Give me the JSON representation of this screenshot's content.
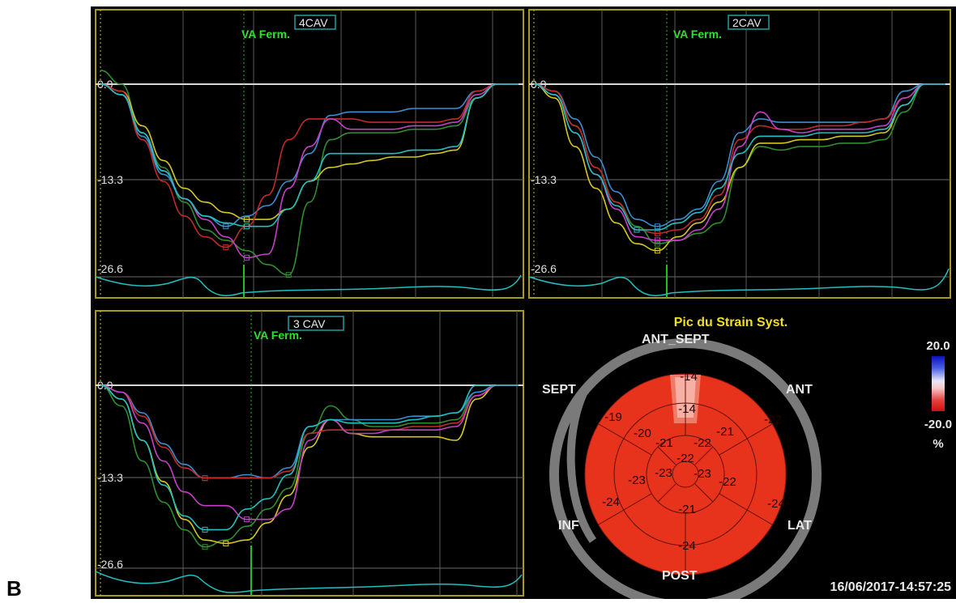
{
  "figure_label": "B",
  "timestamp": "16/06/2017-14:57:25",
  "bullseye": {
    "title": "Pic du Strain Syst.",
    "wall_labels": {
      "ant_sept": "ANT_SEPT",
      "sept": "SEPT",
      "ant": "ANT",
      "inf": "INF",
      "lat": "LAT",
      "post": "POST"
    },
    "segments": {
      "basal": [
        "-14",
        "-22",
        "-24",
        "-24",
        "-24",
        "-19"
      ],
      "mid": [
        "-14",
        "-21",
        "-22",
        "-21",
        "-23",
        "-20"
      ],
      "apical": [
        "-21",
        "-22",
        "-23",
        "-23"
      ],
      "apex": "-22"
    },
    "legend": {
      "max": "20.0",
      "min": "-20.0",
      "unit": "%"
    }
  },
  "chart_data": [
    {
      "type": "line",
      "title": "4CAV",
      "event_marker": "VA Ferm.",
      "y_tick_labels": [
        "0.0",
        "-13.3",
        "-26.6"
      ],
      "ylim": [
        -26.6,
        0
      ],
      "x": [
        0,
        0.05,
        0.1,
        0.15,
        0.2,
        0.25,
        0.3,
        0.35,
        0.4,
        0.45,
        0.5,
        0.55,
        0.6,
        0.65,
        0.7,
        0.75,
        0.8,
        0.85,
        0.9,
        0.95,
        1.0
      ],
      "series": [
        {
          "color": "#2f8f2f",
          "values": [
            2,
            0,
            -7,
            -12,
            -17,
            -21,
            -22.5,
            -24,
            -26,
            -27.5,
            -17,
            -8,
            -7,
            -7,
            -7,
            -6.5,
            -6.5,
            -6,
            -2,
            0,
            0
          ]
        },
        {
          "color": "#d4c81e",
          "values": [
            0,
            -1,
            -6,
            -11,
            -15,
            -17,
            -18.5,
            -19.5,
            -19.5,
            -18,
            -14,
            -12,
            -11.5,
            -11,
            -10.5,
            -10.5,
            -10,
            -9.5,
            -2,
            0,
            0
          ]
        },
        {
          "color": "#3a8fd0",
          "values": [
            0,
            -1.5,
            -7.5,
            -13,
            -16.5,
            -19,
            -20.5,
            -19,
            -17.5,
            -14,
            -10,
            -4.5,
            -4,
            -4,
            -4,
            -3.5,
            -3.5,
            -3.5,
            -1,
            0,
            0
          ]
        },
        {
          "color": "#c22a2a",
          "values": [
            0,
            -1,
            -8,
            -14,
            -19,
            -22,
            -23.5,
            -20.5,
            -16,
            -8,
            -5,
            -5,
            -5,
            -5.5,
            -5.5,
            -5.5,
            -5.5,
            -5,
            -1,
            0,
            0
          ]
        },
        {
          "color": "#c840c8",
          "values": [
            0,
            -1.5,
            -7,
            -12.5,
            -16.5,
            -19.5,
            -22,
            -25,
            -24.5,
            -15,
            -9,
            -5,
            -6.5,
            -6.5,
            -6.5,
            -6,
            -6,
            -5.5,
            -1.5,
            0,
            0
          ]
        },
        {
          "color": "#20c0c0",
          "values": [
            0,
            -1.5,
            -7,
            -12.5,
            -16.5,
            -19,
            -20,
            -20.5,
            -20.5,
            -18,
            -14,
            -10,
            -10,
            -10,
            -10,
            -9.5,
            -9.5,
            -9,
            -2,
            0,
            0
          ]
        }
      ]
    },
    {
      "type": "line",
      "title": "2CAV",
      "event_marker": "VA Ferm.",
      "y_tick_labels": [
        "0.0",
        "-13.3",
        "-26.6"
      ],
      "ylim": [
        -26.6,
        0
      ],
      "x": [
        0,
        0.05,
        0.1,
        0.15,
        0.2,
        0.25,
        0.3,
        0.35,
        0.4,
        0.45,
        0.5,
        0.55,
        0.6,
        0.65,
        0.7,
        0.75,
        0.8,
        0.85,
        0.9,
        0.95,
        1.0
      ],
      "series": [
        {
          "color": "#2f8f2f",
          "values": [
            0,
            -1,
            -6,
            -12,
            -17,
            -20.5,
            -23,
            -22.5,
            -21.5,
            -20,
            -12,
            -9,
            -9.5,
            -9,
            -9,
            -8.5,
            -8.5,
            -8,
            -4,
            0,
            0
          ]
        },
        {
          "color": "#d4c81e",
          "values": [
            0,
            -2,
            -9,
            -15,
            -20,
            -23,
            -24,
            -22,
            -20,
            -17,
            -12,
            -8.5,
            -8.5,
            -8,
            -8,
            -7.5,
            -7.5,
            -7,
            -3,
            0,
            0
          ]
        },
        {
          "color": "#3a8fd0",
          "values": [
            0,
            -1,
            -5,
            -10.5,
            -15.5,
            -19.5,
            -20.5,
            -19.5,
            -18,
            -14,
            -7,
            -5,
            -5.5,
            -5.5,
            -5.5,
            -5.5,
            -5.5,
            -5,
            -1,
            0,
            0
          ]
        },
        {
          "color": "#c22a2a",
          "values": [
            0,
            -1,
            -6,
            -12,
            -17,
            -21,
            -21.5,
            -21,
            -19.5,
            -16,
            -8,
            -6,
            -6.5,
            -6.5,
            -6,
            -6,
            -5.5,
            -5,
            -2,
            0,
            0
          ]
        },
        {
          "color": "#c840c8",
          "values": [
            0,
            -1.5,
            -7,
            -13,
            -18,
            -22,
            -22.5,
            -22.5,
            -21,
            -18,
            -9,
            -4,
            -6.5,
            -7,
            -6.5,
            -6.5,
            -6.5,
            -6,
            -2,
            0,
            0
          ]
        },
        {
          "color": "#20c0c0",
          "values": [
            0,
            -1.5,
            -7,
            -13,
            -17.5,
            -21,
            -21,
            -20,
            -18.5,
            -15,
            -10,
            -7.5,
            -7.5,
            -7.5,
            -7,
            -7,
            -7,
            -6.5,
            -3,
            0,
            0
          ]
        }
      ]
    },
    {
      "type": "line",
      "title": "3 CAV",
      "event_marker": "VA Ferm.",
      "y_tick_labels": [
        "0.0",
        "-13.3",
        "-26.6"
      ],
      "ylim": [
        -26.6,
        0
      ],
      "x": [
        0,
        0.05,
        0.1,
        0.15,
        0.2,
        0.25,
        0.3,
        0.35,
        0.4,
        0.45,
        0.5,
        0.55,
        0.6,
        0.65,
        0.7,
        0.75,
        0.8,
        0.85,
        0.9,
        0.95,
        1.0
      ],
      "series": [
        {
          "color": "#2f8f2f",
          "values": [
            0,
            -3,
            -11,
            -17,
            -21,
            -23.5,
            -22.5,
            -20.5,
            -18,
            -15,
            -7,
            -3,
            -5,
            -6,
            -6,
            -5.5,
            -5.5,
            -5,
            -1,
            0,
            0
          ]
        },
        {
          "color": "#d4c81e",
          "values": [
            0,
            -2,
            -8,
            -14,
            -19.5,
            -22.5,
            -23,
            -22.5,
            -20,
            -16,
            -9,
            -5,
            -7,
            -7.5,
            -7.5,
            -7.5,
            -7.5,
            -8,
            -2,
            0,
            0
          ]
        },
        {
          "color": "#3a8fd0",
          "values": [
            0,
            -1,
            -4,
            -8.5,
            -11.5,
            -13.5,
            -13.5,
            -13,
            -13.5,
            -12,
            -6,
            -5,
            -5,
            -5,
            -5,
            -4.5,
            -4.5,
            -4,
            -1,
            0,
            0
          ]
        },
        {
          "color": "#c22a2a",
          "values": [
            0,
            -1,
            -4.5,
            -9,
            -12,
            -13.5,
            -13.5,
            -13.5,
            -13.5,
            -12.5,
            -7,
            -6.5,
            -6.5,
            -6.5,
            -6.5,
            -6,
            -6,
            -5.5,
            -1.5,
            0,
            0
          ]
        },
        {
          "color": "#c840c8",
          "values": [
            0,
            -1,
            -5.5,
            -11,
            -15.5,
            -17.5,
            -17.5,
            -19.5,
            -19.5,
            -18,
            -8,
            -5,
            -7,
            -7,
            -6.5,
            -6.5,
            -6.5,
            -6,
            -1.5,
            0,
            0
          ]
        },
        {
          "color": "#20c0c0",
          "values": [
            0,
            -2,
            -8,
            -14.5,
            -19,
            -21,
            -21,
            -18,
            -16.5,
            -13,
            -6,
            -5,
            -5.5,
            -5.5,
            -5.5,
            -5,
            -4.5,
            -4,
            0,
            0,
            0
          ]
        }
      ]
    }
  ]
}
